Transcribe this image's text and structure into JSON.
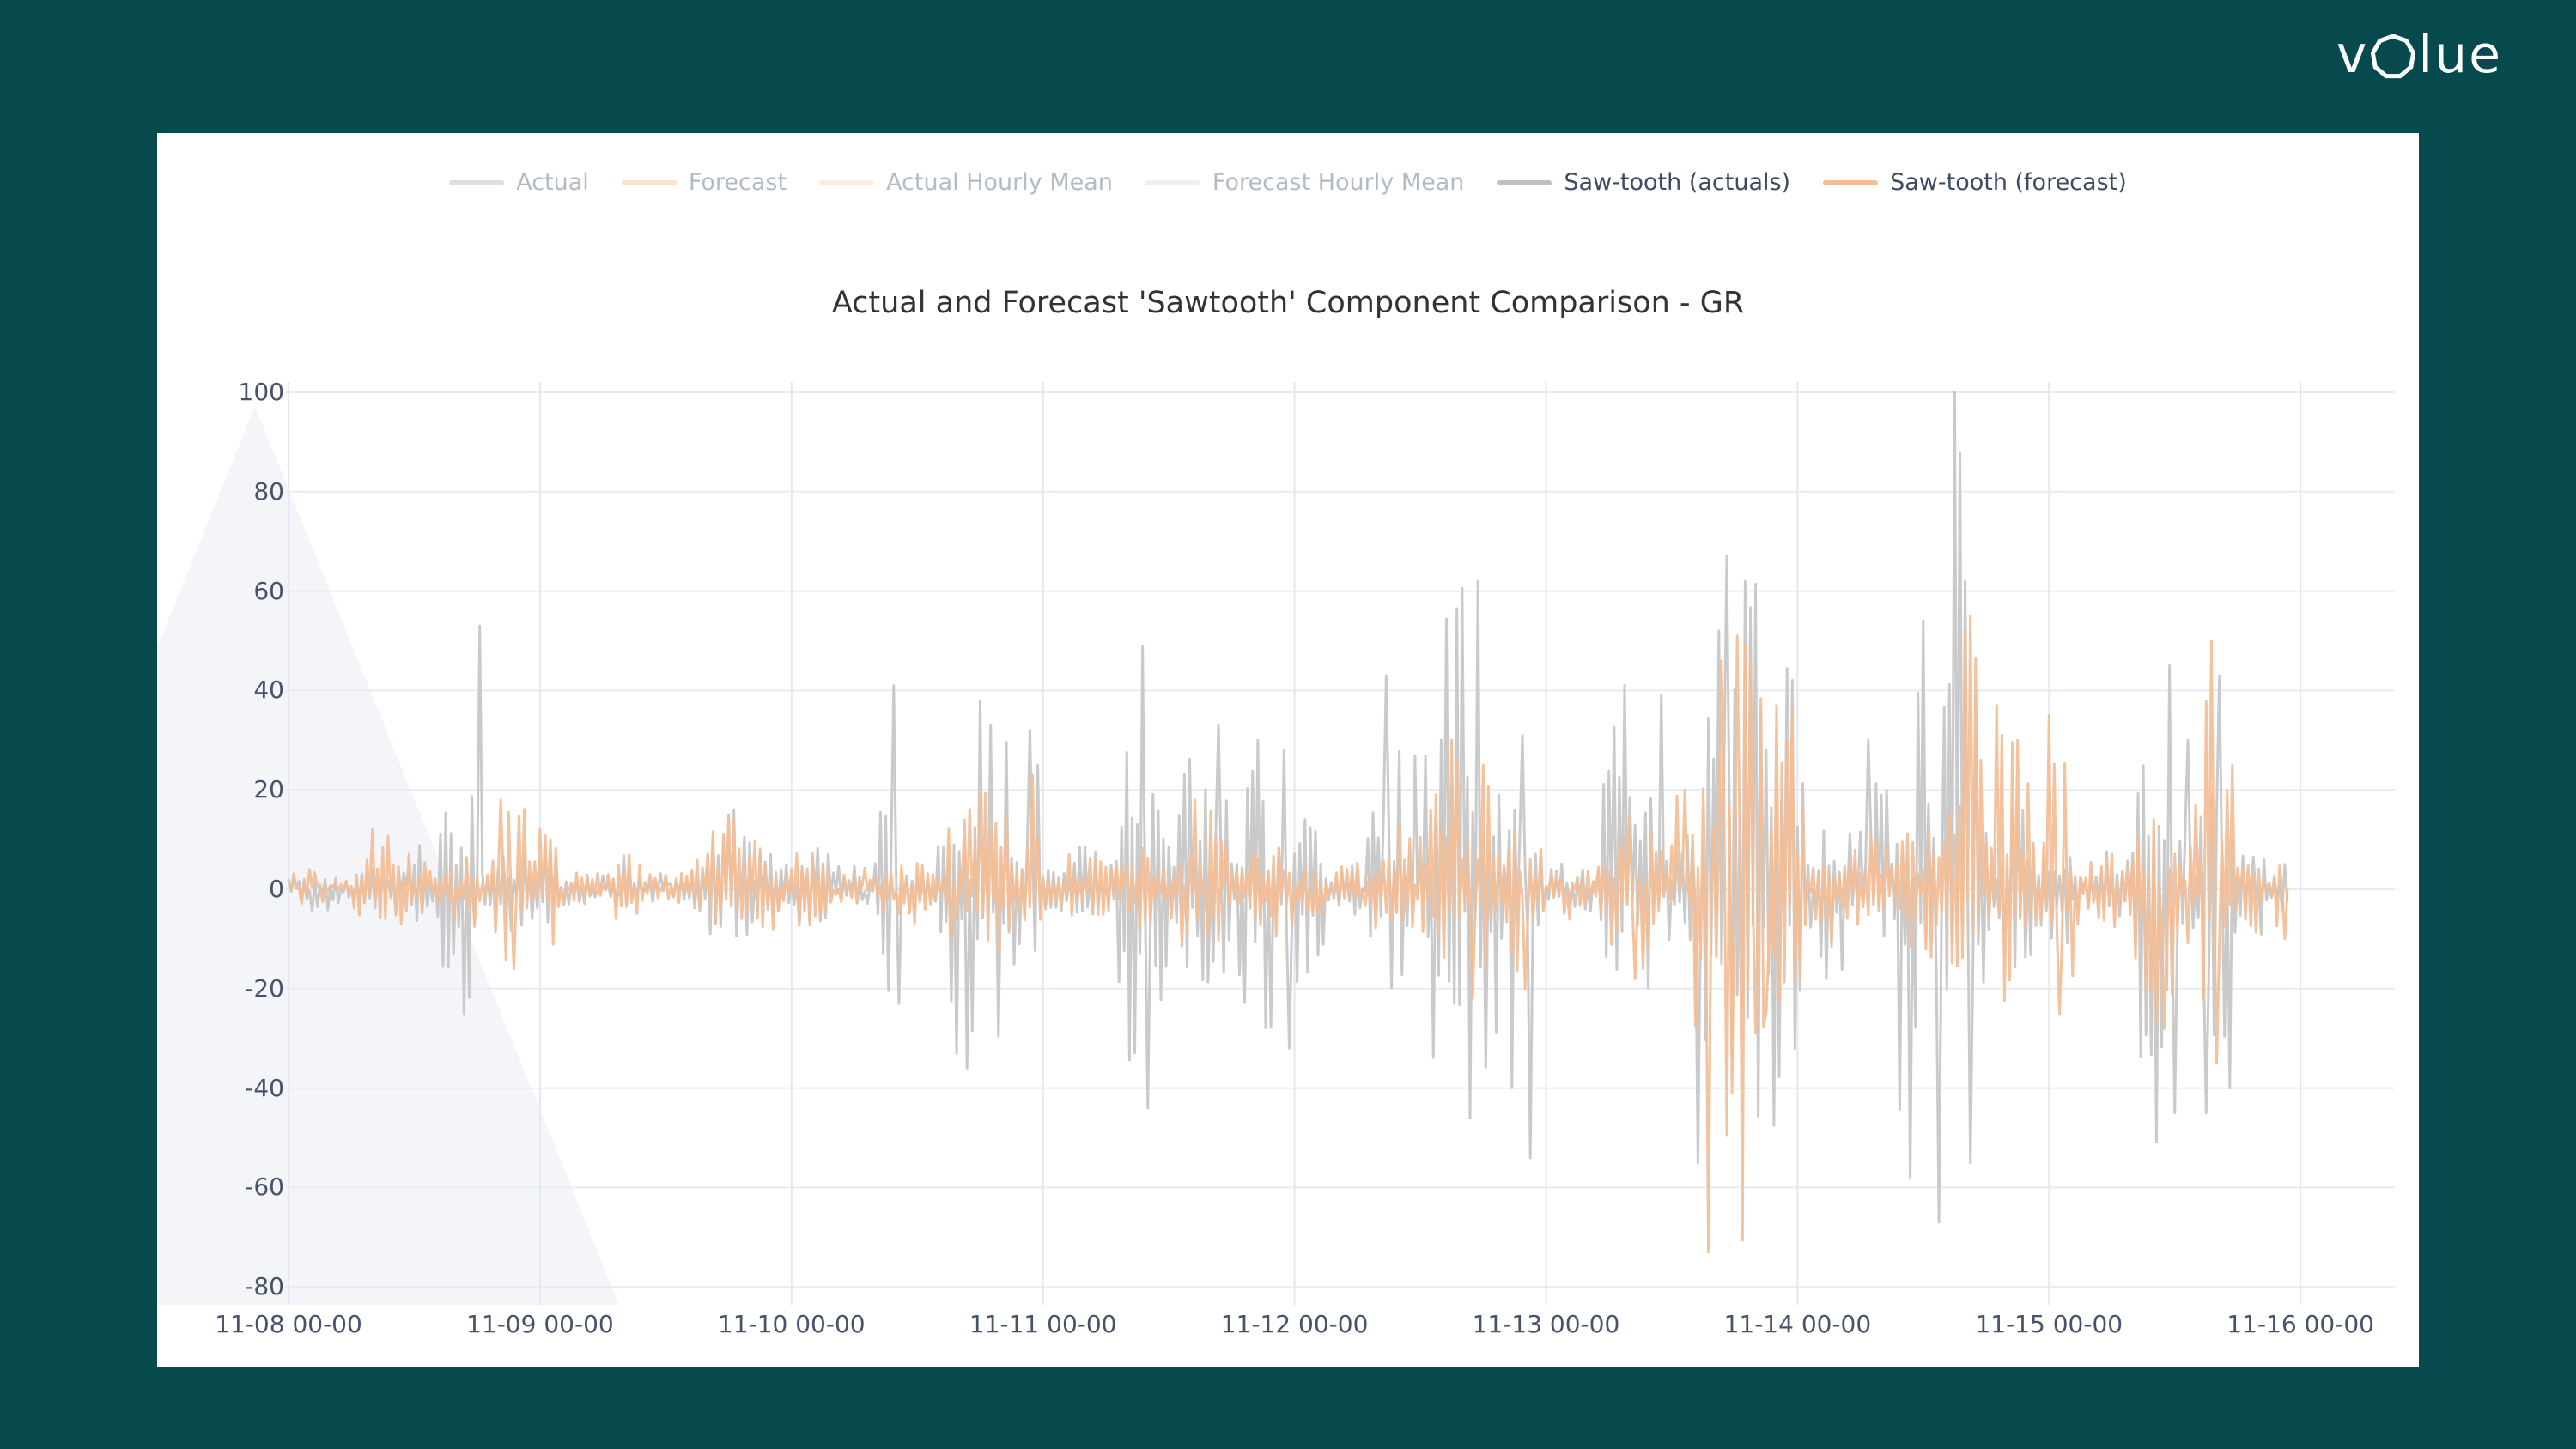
{
  "page": {
    "background_color": "#064A4E",
    "card_color": "#ffffff"
  },
  "logo": {
    "text_left": "v",
    "text_right": "lue",
    "full_text": "volue",
    "color": "#ffffff"
  },
  "legend": {
    "items": [
      {
        "label": "Actual",
        "color": "#c0c2c6",
        "muted": true
      },
      {
        "label": "Forecast",
        "color": "#f6cba4",
        "muted": true
      },
      {
        "label": "Actual Hourly Mean",
        "color": "#f9ddc4",
        "muted": true
      },
      {
        "label": "Forecast Hourly Mean",
        "color": "#dde3ee",
        "muted": true
      },
      {
        "label": "Saw-tooth (actuals)",
        "color": "#bfc0c4",
        "muted": false
      },
      {
        "label": "Saw-tooth (forecast)",
        "color": "#f3bd95",
        "muted": false
      }
    ]
  },
  "chart_data": {
    "type": "line",
    "title": "Actual and Forecast 'Sawtooth' Component Comparison - GR",
    "xlabel": "",
    "ylabel": "",
    "x_tick_labels": [
      "11-08 00-00",
      "11-09 00-00",
      "11-10 00-00",
      "11-11 00-00",
      "11-12 00-00",
      "11-13 00-00",
      "11-14 00-00",
      "11-15 00-00",
      "11-16 00-00"
    ],
    "x_hours_range": [
      0,
      192
    ],
    "data_end_hour": 190.75,
    "y_ticks": [
      100,
      80,
      60,
      40,
      20,
      0,
      -20,
      -40,
      -60,
      -80
    ],
    "ylim": [
      -84,
      104
    ],
    "grid": true,
    "legend_position": "top-center",
    "background_watermark": {
      "shape": "triangle-chevron",
      "color": "#f3f5f9"
    },
    "grid_color_h": "#e9ebf1",
    "grid_color_v": "#e4e7f3",
    "render_seed": 42,
    "step_hours": 0.25,
    "hidden_series": [
      "Actual",
      "Forecast",
      "Actual Hourly Mean",
      "Forecast Hourly Mean"
    ],
    "series": [
      {
        "name": "Saw-tooth (actuals)",
        "color": "#c7c7c7",
        "opacity": 0.95,
        "pattern": "sawtooth",
        "bursts": [
          [
            0,
            6,
            4,
            4
          ],
          [
            6,
            10,
            6,
            5
          ],
          [
            10,
            14,
            10,
            8
          ],
          [
            14,
            19,
            22,
            25
          ],
          [
            19,
            26,
            12,
            10
          ],
          [
            26,
            30,
            3,
            3
          ],
          [
            30,
            34,
            6,
            5
          ],
          [
            34,
            38.5,
            3,
            3
          ],
          [
            38.5,
            47,
            15,
            12
          ],
          [
            47,
            52,
            10,
            8
          ],
          [
            52,
            56,
            5,
            4
          ],
          [
            56,
            58.5,
            41,
            23
          ],
          [
            58.5,
            62,
            6,
            5
          ],
          [
            62,
            70,
            38,
            36
          ],
          [
            70,
            72,
            32,
            19
          ],
          [
            72,
            79,
            9,
            8
          ],
          [
            79,
            84,
            49,
            44
          ],
          [
            84,
            90,
            33,
            25
          ],
          [
            90,
            99,
            30,
            32
          ],
          [
            99,
            103,
            6,
            6
          ],
          [
            103,
            108,
            43,
            25
          ],
          [
            108,
            116,
            62,
            46
          ],
          [
            116,
            120,
            31,
            54
          ],
          [
            120,
            125,
            6,
            6
          ],
          [
            125,
            132,
            41,
            22
          ],
          [
            132,
            133.5,
            10,
            8
          ],
          [
            133.5,
            145,
            67,
            55
          ],
          [
            145,
            149,
            15,
            20
          ],
          [
            149,
            153,
            30,
            12
          ],
          [
            153,
            158,
            54,
            67
          ],
          [
            158,
            162,
            100,
            55
          ],
          [
            162,
            167,
            26,
            26
          ],
          [
            167,
            171,
            17,
            20
          ],
          [
            171,
            176,
            8,
            8
          ],
          [
            176,
            182,
            45,
            52
          ],
          [
            182,
            186,
            43,
            45
          ],
          [
            186,
            190.75,
            12,
            10
          ]
        ],
        "spikes": [
          [
            16.7,
            -25
          ],
          [
            18.2,
            53
          ],
          [
            42,
            15
          ],
          [
            57.7,
            41
          ],
          [
            58.2,
            -23
          ],
          [
            63.8,
            -33
          ],
          [
            64.8,
            -36
          ],
          [
            66,
            38
          ],
          [
            67,
            33
          ],
          [
            70.8,
            32
          ],
          [
            81.4,
            49
          ],
          [
            82.1,
            -44
          ],
          [
            88.7,
            33
          ],
          [
            92.5,
            30
          ],
          [
            95.5,
            -32
          ],
          [
            104.8,
            43
          ],
          [
            110,
            30
          ],
          [
            112.7,
            -46
          ],
          [
            113.5,
            62
          ],
          [
            117.8,
            31
          ],
          [
            118.6,
            -54
          ],
          [
            127.4,
            41
          ],
          [
            130.9,
            39
          ],
          [
            134.4,
            -55
          ],
          [
            136.5,
            52
          ],
          [
            137.3,
            67
          ],
          [
            141,
            28
          ],
          [
            150.8,
            30
          ],
          [
            154.8,
            -58
          ],
          [
            155.9,
            54
          ],
          [
            157.5,
            -67
          ],
          [
            158.9,
            100
          ],
          [
            159.9,
            62
          ],
          [
            160.5,
            -55
          ],
          [
            179.6,
            45
          ],
          [
            180.1,
            -45
          ],
          [
            181.2,
            30
          ],
          [
            182.9,
            -45
          ],
          [
            184.3,
            43
          ],
          [
            185.3,
            -40
          ]
        ]
      },
      {
        "name": "Saw-tooth (forecast)",
        "color": "#f3bd95",
        "opacity": 0.92,
        "pattern": "sawtooth",
        "bursts": [
          [
            0,
            6,
            4,
            3
          ],
          [
            6,
            12,
            12,
            10
          ],
          [
            12,
            14,
            6,
            5
          ],
          [
            14,
            19,
            8,
            8
          ],
          [
            19,
            26,
            18,
            16
          ],
          [
            26,
            30,
            4,
            4
          ],
          [
            30,
            34,
            10,
            8
          ],
          [
            34,
            38.5,
            4,
            4
          ],
          [
            38.5,
            47,
            14,
            12
          ],
          [
            47,
            52,
            9,
            7
          ],
          [
            52,
            56,
            4,
            4
          ],
          [
            56,
            62,
            8,
            7
          ],
          [
            62,
            70,
            19,
            13
          ],
          [
            70,
            72,
            23,
            12
          ],
          [
            72,
            79,
            8,
            7
          ],
          [
            79,
            84,
            12,
            10
          ],
          [
            84,
            90,
            18,
            15
          ],
          [
            90,
            99,
            10,
            10
          ],
          [
            99,
            103,
            5,
            5
          ],
          [
            103,
            108,
            13,
            10
          ],
          [
            108,
            116,
            30,
            22
          ],
          [
            116,
            120,
            19,
            20
          ],
          [
            120,
            125,
            5,
            5
          ],
          [
            125,
            132,
            16,
            18
          ],
          [
            132,
            133.5,
            20,
            10
          ],
          [
            133.5,
            145,
            51,
            73
          ],
          [
            145,
            149,
            12,
            10
          ],
          [
            149,
            153,
            12,
            10
          ],
          [
            153,
            158,
            15,
            15
          ],
          [
            158,
            162,
            55,
            25
          ],
          [
            162,
            167,
            37,
            30
          ],
          [
            167,
            171,
            35,
            25
          ],
          [
            171,
            176,
            8,
            8
          ],
          [
            176,
            182,
            16,
            28
          ],
          [
            182,
            186,
            50,
            35
          ],
          [
            186,
            190.75,
            10,
            12
          ]
        ],
        "spikes": [
          [
            8,
            12
          ],
          [
            20.3,
            18
          ],
          [
            21.5,
            -16
          ],
          [
            24,
            12
          ],
          [
            42,
            14
          ],
          [
            64.4,
            14
          ],
          [
            66,
            19
          ],
          [
            71,
            23
          ],
          [
            86.5,
            18
          ],
          [
            111,
            30
          ],
          [
            113,
            -22
          ],
          [
            118,
            -20
          ],
          [
            128.5,
            -18
          ],
          [
            133.2,
            20
          ],
          [
            135.4,
            -73
          ],
          [
            136.8,
            46
          ],
          [
            138.2,
            51
          ],
          [
            139.4,
            46
          ],
          [
            139.9,
            -29
          ],
          [
            141,
            -25
          ],
          [
            141.9,
            37
          ],
          [
            143,
            30
          ],
          [
            160.6,
            55
          ],
          [
            161.5,
            26
          ],
          [
            163.1,
            37
          ],
          [
            165.1,
            30
          ],
          [
            168,
            35
          ],
          [
            169,
            -25
          ],
          [
            179,
            -28
          ],
          [
            183.6,
            50
          ],
          [
            184.1,
            -35
          ],
          [
            185.5,
            25
          ],
          [
            190.5,
            -10
          ]
        ]
      }
    ]
  }
}
